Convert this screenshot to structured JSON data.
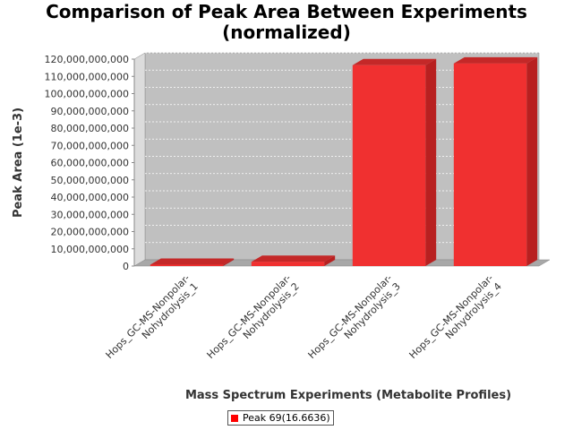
{
  "chart_data": {
    "type": "bar",
    "title_line1": "Comparison of Peak Area Between Experiments",
    "title_line2": "(normalized)",
    "xlabel": "Mass Spectrum Experiments (Metabolite Profiles)",
    "ylabel": "Peak Area (1e-3)",
    "categories": [
      "Hops_GC-MS-Nonpolar-Nohydrolysis_1",
      "Hops_GC-MS-Nonpolar-Nohydrolysis_2",
      "Hops_GC-MS-Nonpolar-Nohydrolysis_3",
      "Hops_GC-MS-Nonpolar-Nohydrolysis_4"
    ],
    "category_lines": [
      [
        "Hops_GC-MS-Nonpolar-",
        "Nohydrolysis_1"
      ],
      [
        "Hops_GC-MS-Nonpolar-",
        "Nohydrolysis_2"
      ],
      [
        "Hops_GC-MS-Nonpolar-",
        "Nohydrolysis_3"
      ],
      [
        "Hops_GC-MS-Nonpolar-",
        "Nohydrolysis_4"
      ]
    ],
    "series": [
      {
        "name": "Peak 69(16.6636)",
        "values": [
          800000000,
          2500000000,
          116500000000,
          117500000000
        ],
        "color": "#ff0000"
      }
    ],
    "ylim": [
      0,
      120000000000
    ],
    "yticks": [
      0,
      10000000000,
      20000000000,
      30000000000,
      40000000000,
      50000000000,
      60000000000,
      70000000000,
      80000000000,
      90000000000,
      100000000000,
      110000000000,
      120000000000
    ],
    "ytick_labels": [
      "0",
      "10,000,000,000",
      "20,000,000,000",
      "30,000,000,000",
      "40,000,000,000",
      "50,000,000,000",
      "60,000,000,000",
      "70,000,000,000",
      "80,000,000,000",
      "90,000,000,000",
      "100,000,000,000",
      "110,000,000,000",
      "120,000,000,000"
    ],
    "grid": true,
    "legend_position": "bottom"
  }
}
